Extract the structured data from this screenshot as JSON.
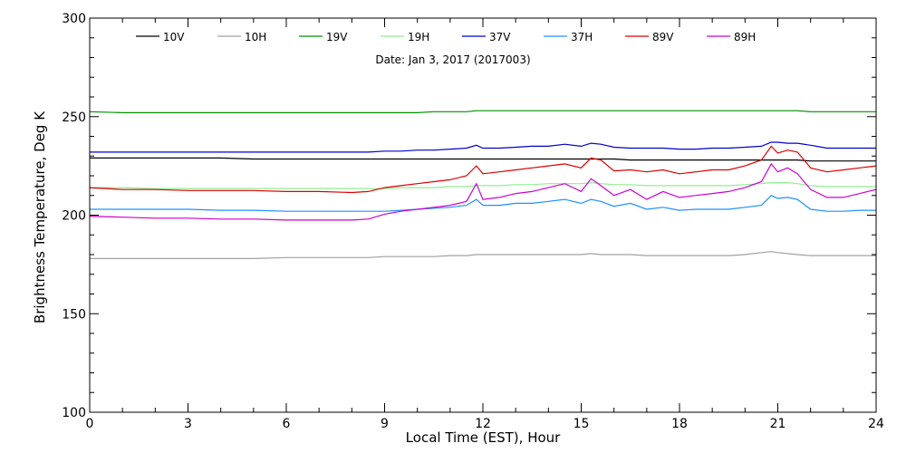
{
  "chart_data": {
    "type": "line",
    "title": "",
    "date_label": "Date: Jan  3, 2017 (2017003)",
    "xlabel": "Local Time (EST), Hour",
    "ylabel": "Brightness Temperature, Deg K",
    "xlim": [
      0,
      24
    ],
    "ylim": [
      100,
      300
    ],
    "xticks": [
      0,
      3,
      6,
      9,
      12,
      15,
      18,
      21,
      24
    ],
    "yticks": [
      100,
      150,
      200,
      250,
      300
    ],
    "grid": false,
    "legend_position": "top",
    "x": [
      0,
      1,
      2,
      3,
      4,
      5,
      6,
      7,
      8,
      8.5,
      9,
      9.5,
      10,
      10.5,
      11,
      11.5,
      11.8,
      12,
      12.5,
      13,
      13.5,
      14,
      14.5,
      15,
      15.3,
      15.6,
      16,
      16.5,
      17,
      17.5,
      18,
      18.5,
      19,
      19.5,
      20,
      20.5,
      20.8,
      21,
      21.3,
      21.6,
      22,
      22.5,
      23,
      23.5,
      24
    ],
    "series": [
      {
        "name": "10V",
        "color": "#000000",
        "values": [
          229,
          229,
          229,
          229,
          229,
          228.5,
          228.5,
          228.5,
          228.5,
          228.5,
          228.5,
          228.5,
          228.5,
          228.5,
          228.5,
          228.5,
          228.5,
          228.5,
          228.5,
          228.5,
          228.5,
          228.5,
          228.5,
          228.5,
          228.5,
          228.5,
          228.5,
          228,
          228,
          228,
          228,
          228,
          228,
          228,
          228,
          228,
          228,
          228,
          228,
          228,
          227.5,
          227.5,
          227.5,
          227.5,
          227.5
        ]
      },
      {
        "name": "10H",
        "color": "#a0a0a0",
        "values": [
          178,
          178,
          178,
          178,
          178,
          178,
          178.5,
          178.5,
          178.5,
          178.5,
          179,
          179,
          179,
          179,
          179.5,
          179.5,
          180,
          180,
          180,
          180,
          180,
          180,
          180,
          180,
          180.5,
          180,
          180,
          180,
          179.5,
          179.5,
          179.5,
          179.5,
          179.5,
          179.5,
          180,
          181,
          181.5,
          181,
          180.5,
          180,
          179.5,
          179.5,
          179.5,
          179.5,
          179.5
        ]
      },
      {
        "name": "19V",
        "color": "#009000",
        "values": [
          252.5,
          252,
          252,
          252,
          252,
          252,
          252,
          252,
          252,
          252,
          252,
          252,
          252,
          252.5,
          252.5,
          252.5,
          253,
          253,
          253,
          253,
          253,
          253,
          253,
          253,
          253,
          253,
          253,
          253,
          253,
          253,
          253,
          253,
          253,
          253,
          253,
          253,
          253,
          253,
          253,
          253,
          252.5,
          252.5,
          252.5,
          252.5,
          252.5
        ]
      },
      {
        "name": "19H",
        "color": "#90ee90",
        "values": [
          214,
          214,
          213.5,
          213.5,
          213.5,
          213.5,
          213.5,
          213.5,
          213.5,
          213.5,
          213.5,
          214,
          214,
          214,
          214.5,
          214.5,
          215,
          215,
          215,
          215.5,
          215.5,
          216,
          216,
          216,
          216.5,
          216,
          215.5,
          215.5,
          215,
          215,
          215,
          215,
          215,
          215,
          215.5,
          216,
          216.5,
          216.5,
          216.5,
          216,
          215,
          214.5,
          214.5,
          214.5,
          214.5
        ]
      },
      {
        "name": "37V",
        "color": "#0000cc",
        "values": [
          232,
          232,
          232,
          232,
          232,
          232,
          232,
          232,
          232,
          232,
          232.5,
          232.5,
          233,
          233,
          233.5,
          234,
          235.5,
          234,
          234,
          234.5,
          235,
          235,
          236,
          235,
          236.5,
          236,
          234.5,
          234,
          234,
          234,
          233.5,
          233.5,
          234,
          234,
          234.5,
          235,
          237,
          237,
          236.5,
          236.5,
          235.5,
          234,
          234,
          234,
          234
        ]
      },
      {
        "name": "37H",
        "color": "#1e90ff",
        "values": [
          203,
          203,
          203,
          203,
          202.5,
          202.5,
          202,
          202,
          202,
          202,
          202,
          202.5,
          203,
          203.5,
          204,
          205,
          208,
          205,
          205,
          206,
          206,
          207,
          208,
          206,
          208,
          207,
          204.5,
          206,
          203,
          204,
          202.5,
          203,
          203,
          203,
          204,
          205,
          210,
          208.5,
          209,
          208,
          203,
          202,
          202,
          202.5,
          202.5
        ]
      },
      {
        "name": "89V",
        "color": "#dd0000",
        "values": [
          214,
          213,
          213,
          212.5,
          212.5,
          212.5,
          212,
          212,
          211.5,
          212,
          214,
          215,
          216,
          217,
          218,
          220,
          225,
          221,
          222,
          223,
          224,
          225,
          226,
          224,
          229,
          228,
          222.5,
          223,
          222,
          223,
          221,
          222,
          223,
          223,
          225,
          228,
          235,
          231.5,
          233,
          232,
          224,
          222,
          223,
          224,
          225
        ]
      },
      {
        "name": "89H",
        "color": "#cc00cc",
        "values": [
          199.5,
          199,
          198.5,
          198.5,
          198,
          198,
          197.5,
          197.5,
          197.5,
          198,
          200.5,
          202,
          203,
          204,
          205,
          207,
          216,
          208,
          209,
          211,
          212,
          214,
          216,
          212,
          218.5,
          215,
          210,
          213,
          208,
          212,
          209,
          210,
          211,
          212,
          214,
          217,
          226,
          222,
          224,
          221,
          213,
          209,
          209,
          211,
          213
        ]
      }
    ]
  }
}
